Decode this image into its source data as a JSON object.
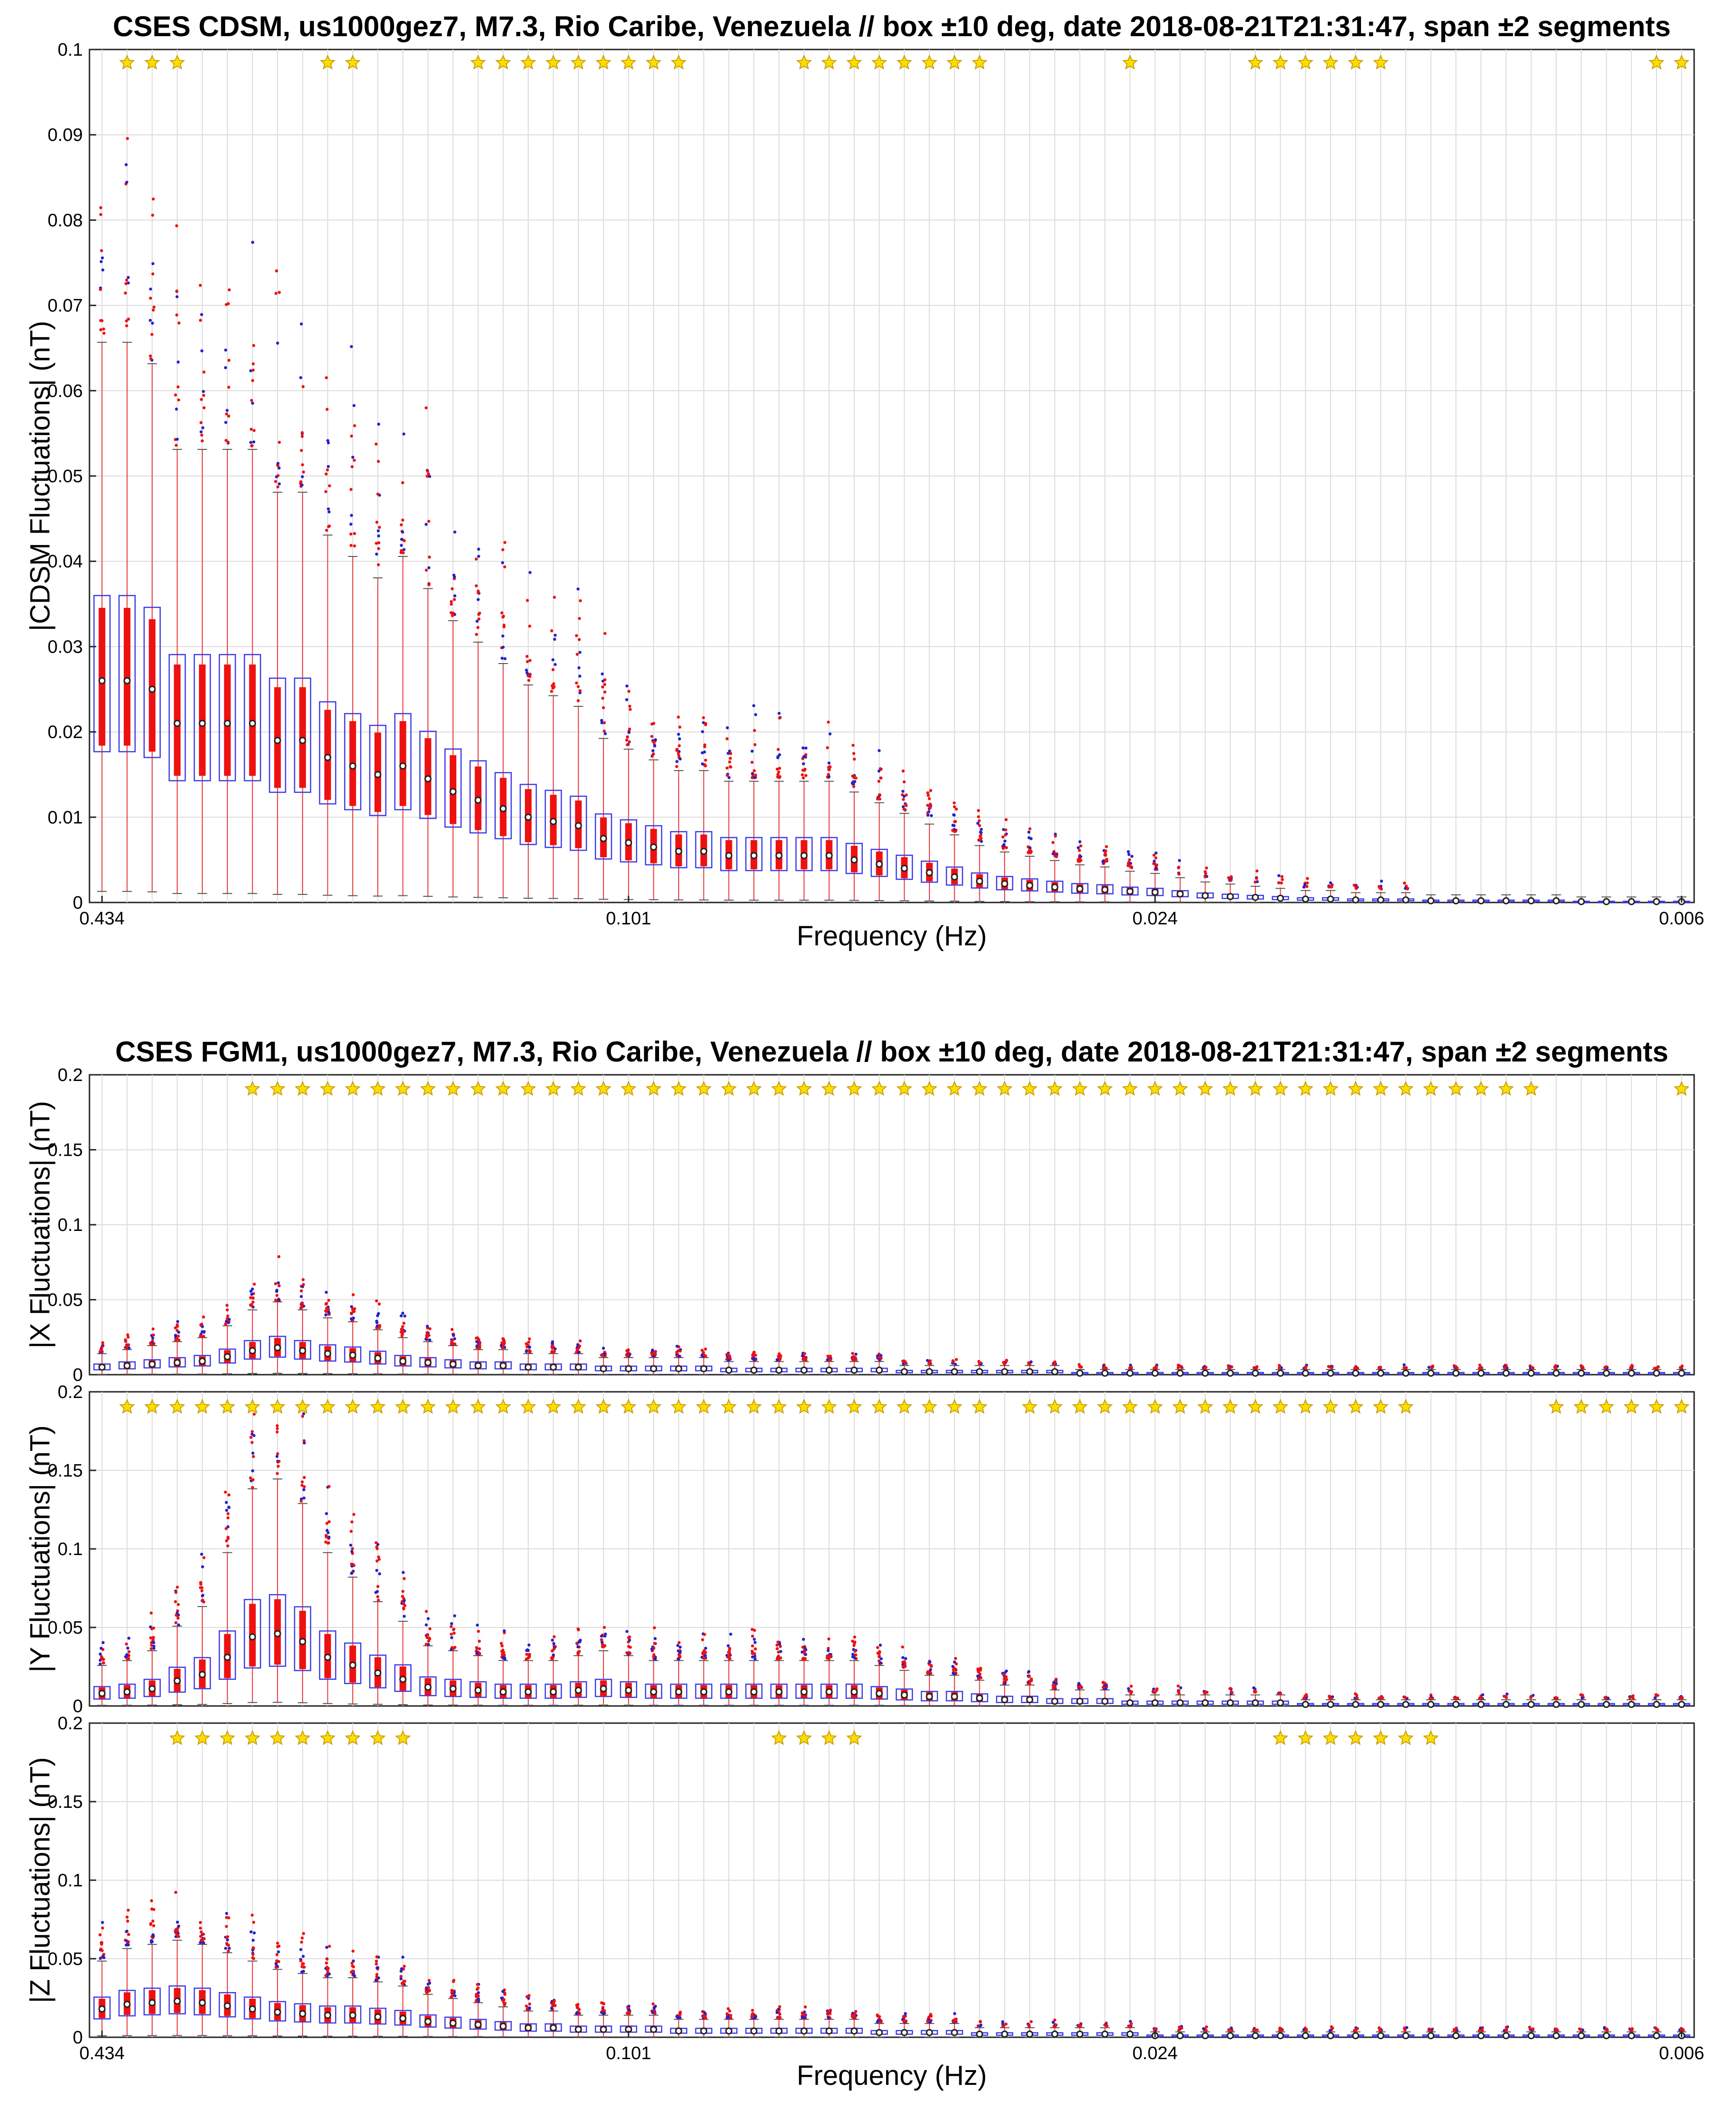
{
  "colors": {
    "box": "#3a3ae8",
    "whisker": "#e83a3a",
    "iqr_highlight": "#ee1111",
    "outlier_high": "#ee1111",
    "outlier_blue": "#2222cc",
    "star": "#ffdd00",
    "grid": "#dcdcdc"
  },
  "chart_data": [
    {
      "type": "boxplot",
      "title": "CSES CDSM, us1000gez7, M7.3, Rio Caribe, Venezuela // box ±10 deg, date 2018-08-21T21:31:47, span ±2 segments",
      "ylabel": "|CDSM Fluctuations| (nT)",
      "xlabel": "Frequency (Hz)",
      "xtick_labels": [
        "0.434",
        "0.101",
        "0.024",
        "0.006"
      ],
      "ylim": [
        0,
        0.1
      ],
      "yticks": [
        "0",
        "0.01",
        "0.02",
        "0.03",
        "0.04",
        "0.05",
        "0.06",
        "0.07",
        "0.08",
        "0.09",
        "0.1"
      ],
      "n_bins": 64,
      "medians": [
        0.026,
        0.026,
        0.025,
        0.021,
        0.021,
        0.021,
        0.021,
        0.019,
        0.019,
        0.017,
        0.016,
        0.015,
        0.016,
        0.0145,
        0.013,
        0.012,
        0.011,
        0.01,
        0.0095,
        0.009,
        0.0075,
        0.007,
        0.0065,
        0.006,
        0.006,
        0.0055,
        0.0055,
        0.0055,
        0.0055,
        0.0055,
        0.005,
        0.0045,
        0.004,
        0.0035,
        0.003,
        0.0025,
        0.0022,
        0.002,
        0.0018,
        0.0016,
        0.0015,
        0.0013,
        0.0012,
        0.001,
        0.0008,
        0.0007,
        0.0006,
        0.0005,
        0.0004,
        0.0004,
        0.0003,
        0.0003,
        0.0003,
        0.0002,
        0.0002,
        0.0002,
        0.0002,
        0.0002,
        0.0002,
        0.0001,
        0.0001,
        0.0001,
        0.0001,
        0.0001
      ],
      "star_bins": [
        2,
        3,
        4,
        10,
        11,
        16,
        17,
        18,
        19,
        20,
        21,
        22,
        23,
        24,
        29,
        30,
        31,
        32,
        33,
        34,
        35,
        36,
        42,
        47,
        48,
        49,
        50,
        51,
        52,
        63,
        64
      ]
    },
    {
      "type": "boxplot",
      "title": "CSES FGM1, us1000gez7, M7.3, Rio Caribe, Venezuela // box ±10 deg, date 2018-08-21T21:31:47, span ±2 segments",
      "ylabel": "|X Fluctuations| (nT)",
      "xlabel": "",
      "ylim": [
        0,
        0.2
      ],
      "yticks": [
        "0",
        "0.05",
        "0.1",
        "0.15",
        "0.2"
      ],
      "n_bins": 64,
      "medians": [
        0.005,
        0.006,
        0.007,
        0.008,
        0.009,
        0.012,
        0.016,
        0.018,
        0.016,
        0.014,
        0.013,
        0.011,
        0.009,
        0.008,
        0.007,
        0.006,
        0.006,
        0.005,
        0.005,
        0.005,
        0.004,
        0.004,
        0.004,
        0.004,
        0.004,
        0.003,
        0.003,
        0.003,
        0.003,
        0.003,
        0.003,
        0.003,
        0.002,
        0.002,
        0.002,
        0.002,
        0.002,
        0.002,
        0.002,
        0.001,
        0.001,
        0.001,
        0.001,
        0.001,
        0.001,
        0.001,
        0.001,
        0.001,
        0.001,
        0.001,
        0.001,
        0.001,
        0.001,
        0.001,
        0.001,
        0.001,
        0.001,
        0.001,
        0.001,
        0.001,
        0.001,
        0.001,
        0.001,
        0.001
      ],
      "star_bins": [
        7,
        8,
        9,
        10,
        11,
        12,
        13,
        14,
        15,
        16,
        17,
        18,
        19,
        20,
        21,
        22,
        23,
        24,
        25,
        26,
        27,
        28,
        29,
        30,
        31,
        32,
        33,
        34,
        35,
        36,
        37,
        38,
        39,
        40,
        41,
        42,
        43,
        44,
        45,
        46,
        47,
        48,
        49,
        50,
        51,
        52,
        53,
        54,
        55,
        56,
        57,
        58,
        64
      ]
    },
    {
      "type": "boxplot",
      "ylabel": "|Y Fluctuations| (nT)",
      "ylim": [
        0,
        0.2
      ],
      "yticks": [
        "0",
        "0.05",
        "0.1",
        "0.15",
        "0.2"
      ],
      "n_bins": 64,
      "medians": [
        0.008,
        0.009,
        0.011,
        0.016,
        0.02,
        0.031,
        0.044,
        0.046,
        0.041,
        0.031,
        0.026,
        0.021,
        0.017,
        0.012,
        0.011,
        0.01,
        0.009,
        0.009,
        0.009,
        0.01,
        0.011,
        0.01,
        0.009,
        0.009,
        0.009,
        0.009,
        0.009,
        0.009,
        0.009,
        0.009,
        0.009,
        0.008,
        0.007,
        0.006,
        0.006,
        0.005,
        0.004,
        0.004,
        0.003,
        0.003,
        0.003,
        0.002,
        0.002,
        0.002,
        0.002,
        0.002,
        0.002,
        0.002,
        0.001,
        0.001,
        0.001,
        0.001,
        0.001,
        0.001,
        0.001,
        0.001,
        0.001,
        0.001,
        0.001,
        0.001,
        0.001,
        0.001,
        0.001,
        0.001
      ],
      "star_bins": [
        2,
        3,
        4,
        5,
        6,
        7,
        8,
        9,
        10,
        11,
        12,
        13,
        14,
        15,
        16,
        17,
        18,
        19,
        20,
        21,
        22,
        23,
        24,
        25,
        26,
        27,
        28,
        29,
        30,
        31,
        32,
        33,
        34,
        35,
        36,
        38,
        39,
        40,
        41,
        42,
        43,
        44,
        45,
        46,
        47,
        48,
        49,
        50,
        51,
        52,
        53,
        59,
        60,
        61,
        62,
        63,
        64
      ]
    },
    {
      "type": "boxplot",
      "ylabel": "|Z Fluctuations| (nT)",
      "xlabel": "Frequency (Hz)",
      "xtick_labels": [
        "0.434",
        "0.101",
        "0.024",
        "0.006"
      ],
      "ylim": [
        0,
        0.2
      ],
      "yticks": [
        "0",
        "0.05",
        "0.1",
        "0.15",
        "0.2"
      ],
      "n_bins": 64,
      "medians": [
        0.018,
        0.021,
        0.022,
        0.023,
        0.022,
        0.02,
        0.018,
        0.016,
        0.015,
        0.014,
        0.014,
        0.013,
        0.012,
        0.01,
        0.009,
        0.008,
        0.007,
        0.006,
        0.006,
        0.005,
        0.005,
        0.005,
        0.005,
        0.004,
        0.004,
        0.004,
        0.004,
        0.004,
        0.004,
        0.004,
        0.004,
        0.003,
        0.003,
        0.003,
        0.003,
        0.002,
        0.002,
        0.002,
        0.002,
        0.002,
        0.002,
        0.002,
        0.001,
        0.001,
        0.001,
        0.001,
        0.001,
        0.001,
        0.001,
        0.001,
        0.001,
        0.001,
        0.001,
        0.001,
        0.001,
        0.001,
        0.001,
        0.001,
        0.001,
        0.001,
        0.001,
        0.001,
        0.001,
        0.001
      ],
      "star_bins": [
        4,
        5,
        6,
        7,
        8,
        9,
        10,
        11,
        12,
        13,
        28,
        29,
        30,
        31,
        48,
        49,
        50,
        51,
        52,
        53,
        54
      ]
    }
  ]
}
